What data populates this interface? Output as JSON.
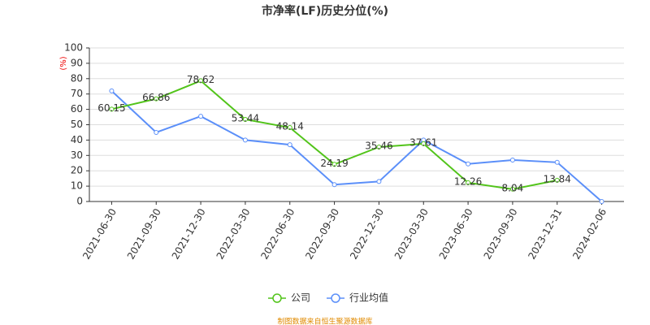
{
  "chart_data": {
    "type": "line",
    "title": "市净率(LF)历史分位(%)",
    "y_label": "(%)",
    "categories": [
      "2021-06-30",
      "2021-09-30",
      "2021-12-30",
      "2022-03-30",
      "2022-06-30",
      "2022-09-30",
      "2022-12-30",
      "2023-03-30",
      "2023-06-30",
      "2023-09-30",
      "2023-12-31",
      "2024-02-06"
    ],
    "series": [
      {
        "name": "公司",
        "color": "#52c41a",
        "values": [
          60.15,
          66.86,
          78.62,
          53.44,
          48.14,
          24.19,
          35.46,
          37.61,
          12.26,
          8.04,
          13.84,
          null
        ],
        "show_labels": true
      },
      {
        "name": "行业均值",
        "color": "#5b8ff9",
        "values": [
          72,
          45,
          55.5,
          40,
          37,
          11,
          13,
          40,
          24.5,
          27,
          25.5,
          0
        ],
        "show_labels": false
      }
    ],
    "ylim": [
      0,
      100
    ],
    "yticks": [
      0,
      10,
      20,
      30,
      40,
      50,
      60,
      70,
      80,
      90,
      100
    ],
    "grid": true,
    "legend": "bottom",
    "footer": "制图数据来自恒生聚源数据库"
  }
}
